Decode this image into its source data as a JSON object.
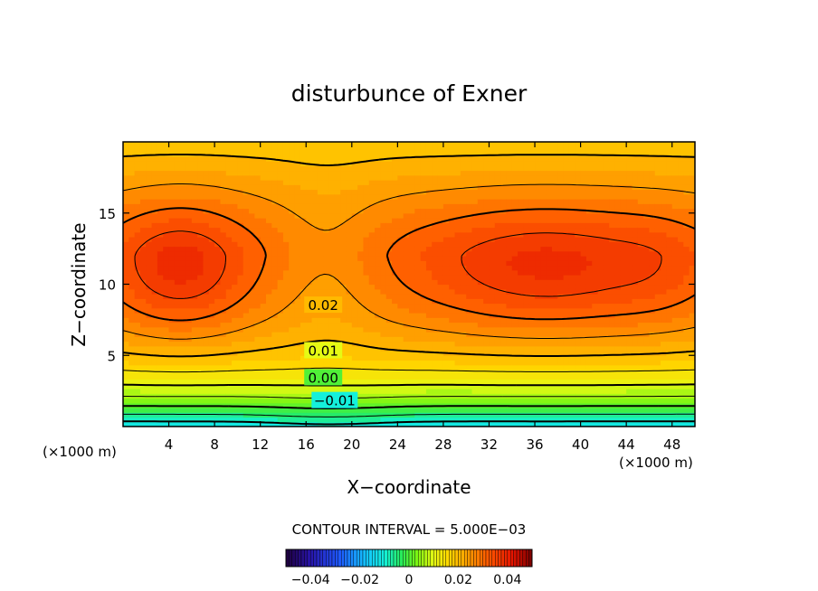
{
  "chart_data": {
    "type": "heatmap",
    "title": "disturbunce of Exner",
    "xlabel": "X−coordinate",
    "ylabel": "Z−coordinate",
    "x_unit_left": "(×1000 m)",
    "x_unit_right": "(×1000 m)",
    "xlim": [
      0,
      50
    ],
    "ylim": [
      0,
      20
    ],
    "x_ticks": [
      4,
      8,
      12,
      16,
      20,
      24,
      28,
      32,
      36,
      40,
      44,
      48
    ],
    "y_ticks": [
      5,
      10,
      15
    ],
    "contour_interval_label": "CONTOUR INTERVAL = 5.000E−03",
    "contour_interval": 0.005,
    "contour_labels": [
      {
        "text": "0.02",
        "value": 0.02,
        "x": 17.5,
        "y": 8.5
      },
      {
        "text": "0.01",
        "value": 0.01,
        "x": 17.5,
        "y": 5.3
      },
      {
        "text": "0.00",
        "value": 0.0,
        "x": 17.5,
        "y": 3.4
      },
      {
        "text": "−0.01",
        "value": -0.01,
        "x": 18.5,
        "y": 1.8
      }
    ],
    "field_description": "Exner function disturbance over x 0-50 (x1000 m) and z 0-20 (x1000 m); maxima ~0.035 centered near (5,11) and (38,11), saddle near x=18, decreasing to ~-0.012 at the ground.",
    "colorbar": {
      "range": [
        -0.05,
        0.05
      ],
      "ticks": [
        -0.04,
        -0.02,
        0,
        0.02,
        0.04
      ],
      "tick_labels": [
        "−0.04",
        "−0.02",
        "0",
        "0.02",
        "0.04"
      ]
    }
  }
}
